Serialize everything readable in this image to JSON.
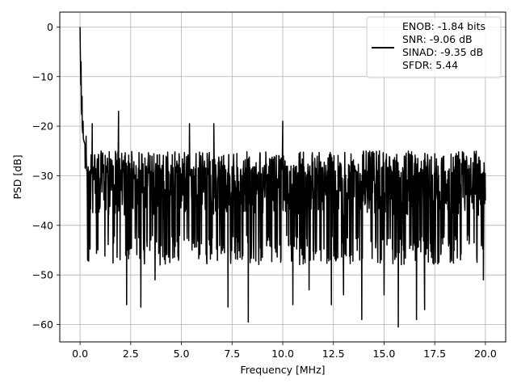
{
  "chart_data": {
    "type": "line",
    "title": "",
    "xlabel": "Frequency [MHz]",
    "ylabel": "PSD [dB]",
    "xlim": [
      -1.0,
      21.0
    ],
    "ylim": [
      -63.5,
      3.0
    ],
    "xticks": [
      0.0,
      2.5,
      5.0,
      7.5,
      10.0,
      12.5,
      15.0,
      17.5,
      20.0
    ],
    "xtick_labels": [
      "0.0",
      "2.5",
      "5.0",
      "7.5",
      "10.0",
      "12.5",
      "15.0",
      "17.5",
      "20.0"
    ],
    "yticks": [
      0,
      -10,
      -20,
      -30,
      -40,
      -50,
      -60
    ],
    "ytick_labels": [
      "0",
      "−10",
      "−20",
      "−30",
      "−40",
      "−50",
      "−60"
    ],
    "grid": true,
    "legend_position": "top-right",
    "series": [
      {
        "name": "ENOB: -1.84 bits\nSNR: -9.06 dB\nSINAD: -9.35 dB\nSFDR: 5.44",
        "legend_lines": [
          "ENOB: -1.84 bits",
          "SNR: -9.06 dB",
          "SINAD: -9.35 dB",
          "SFDR: 5.44"
        ],
        "color": "#000000",
        "x_range": [
          0.0,
          20.0
        ],
        "approx_points": 1500,
        "features": [
          {
            "x": 0.0,
            "y": 0.0
          },
          {
            "x": 0.05,
            "y": -7
          },
          {
            "x": 0.1,
            "y": -14
          },
          {
            "x": 0.15,
            "y": -19
          },
          {
            "x": 0.3,
            "y": -22
          },
          {
            "x": 0.6,
            "y": -19.5
          },
          {
            "x": 1.9,
            "y": -17
          },
          {
            "x": 2.3,
            "y": -56
          },
          {
            "x": 3.0,
            "y": -56.5
          },
          {
            "x": 3.7,
            "y": -51
          },
          {
            "x": 5.4,
            "y": -19.5
          },
          {
            "x": 6.6,
            "y": -19.5
          },
          {
            "x": 7.3,
            "y": -56.5
          },
          {
            "x": 8.3,
            "y": -59.5
          },
          {
            "x": 10.0,
            "y": -19
          },
          {
            "x": 10.5,
            "y": -56
          },
          {
            "x": 11.3,
            "y": -53
          },
          {
            "x": 12.4,
            "y": -56
          },
          {
            "x": 13.0,
            "y": -54
          },
          {
            "x": 13.9,
            "y": -59
          },
          {
            "x": 15.0,
            "y": -54
          },
          {
            "x": 15.7,
            "y": -60.5
          },
          {
            "x": 16.6,
            "y": -59
          },
          {
            "x": 17.0,
            "y": -57
          },
          {
            "x": 19.9,
            "y": -51
          },
          {
            "x": 20.0,
            "y": -35
          }
        ],
        "noise_floor": {
          "typical_upper": -24,
          "typical_median": -33,
          "typical_lower": -44
        }
      }
    ]
  }
}
